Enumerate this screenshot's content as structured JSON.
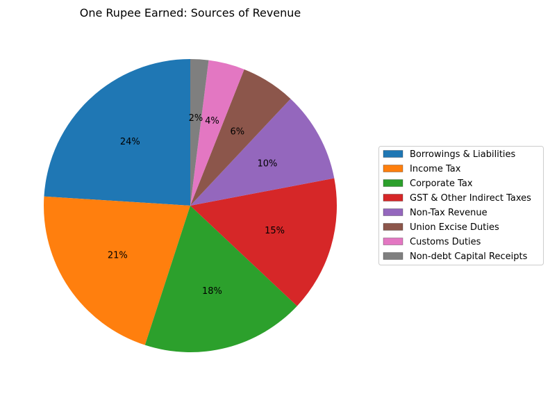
{
  "chart_data": {
    "type": "pie",
    "title": "One Rupee Earned: Sources of Revenue",
    "categories": [
      "Borrowings & Liabilities",
      "Income Tax",
      "Corporate Tax",
      "GST & Other Indirect Taxes",
      "Non-Tax Revenue",
      "Union Excise Duties",
      "Customs Duties",
      "Non-debt Capital Receipts"
    ],
    "values": [
      24,
      21,
      18,
      15,
      10,
      6,
      4,
      2
    ],
    "value_labels": [
      "24%",
      "21%",
      "18%",
      "15%",
      "10%",
      "6%",
      "4%",
      "2%"
    ],
    "colors": [
      "#1f77b4",
      "#ff7f0e",
      "#2ca02c",
      "#d62728",
      "#9467bd",
      "#8c564b",
      "#e377c2",
      "#7f7f7f"
    ],
    "start_angle_deg": 90,
    "direction": "counterclockwise",
    "legend_placement": "right"
  }
}
